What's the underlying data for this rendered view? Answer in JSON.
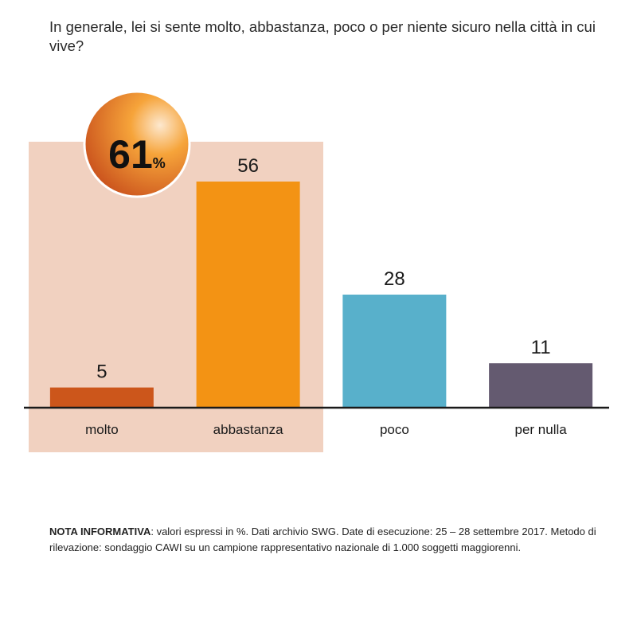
{
  "title": "In generale, lei si sente molto, abbastanza, poco o per niente sicuro nella città in cui vive?",
  "highlight": {
    "value": "61",
    "unit": "%"
  },
  "colors": {
    "molto": "#cc561b",
    "abbastanza": "#f39314",
    "poco": "#58b0cb",
    "per_nulla": "#645a70",
    "highlight_box": "#f1d1c0",
    "baseline": "#1a1a1a"
  },
  "note": {
    "label": "NOTA INFORMATIVA",
    "text": ": valori espressi in %. Dati archivio SWG. Date di esecuzione: 25 – 28 settembre 2017. Metodo di rilevazione: sondaggio CAWI su un campione rappresentativo nazionale di 1.000 soggetti maggiorenni."
  },
  "chart_data": {
    "type": "bar",
    "categories": [
      "molto",
      "abbastanza",
      "poco",
      "per nulla"
    ],
    "values": [
      5,
      56,
      28,
      11
    ],
    "ylim": [
      0,
      62
    ],
    "grid": false,
    "highlighted_categories": [
      "molto",
      "abbastanza"
    ]
  }
}
